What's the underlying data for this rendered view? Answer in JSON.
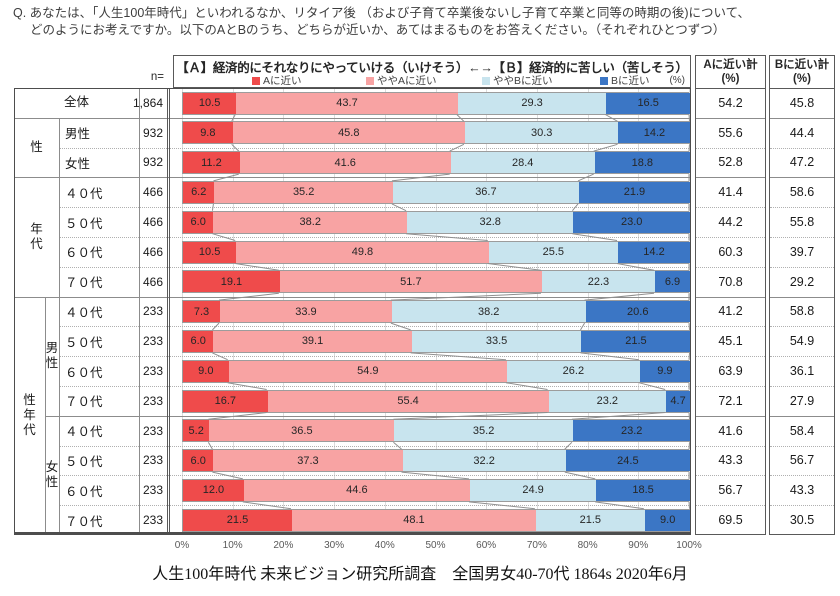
{
  "question": {
    "line1": "Q. あなたは、「人生100年時代」といわれるなか、リタイア後 （および子育て卒業後ないし子育て卒業と同等の時期の後)について、",
    "line2": "どのようにお考えですか。以下のAとBのうち、どちらが近いか、あてはまるものをお答えください。（それぞれひとつずつ）"
  },
  "header": {
    "n_label": "n=",
    "percent_note": "(%)",
    "col_a_title": "Aに近い計",
    "col_a_unit": "(%)",
    "col_b_title": "Bに近い計",
    "col_b_unit": "(%)"
  },
  "chart_data": {
    "type": "bar",
    "stacked": true,
    "orientation": "horizontal",
    "legend_position": "top",
    "title": "【Ａ】経済的にそれなりにやっていける（いけそう）←→【Ｂ】経済的に苦しい（苦しそう）",
    "series_names": [
      "Aに近い",
      "ややAに近い",
      "ややBに近い",
      "Bに近い"
    ],
    "colors": [
      "#ef4b4b",
      "#f8a3a3",
      "#c8e4ee",
      "#3b76c5"
    ],
    "xlim": [
      0,
      100
    ],
    "x_ticks": [
      "0%",
      "10%",
      "20%",
      "30%",
      "40%",
      "50%",
      "60%",
      "70%",
      "80%",
      "90%",
      "100%"
    ],
    "rows": [
      {
        "group": "全体",
        "label": "全体",
        "n": "1,864",
        "values": [
          10.5,
          43.7,
          29.3,
          16.5
        ],
        "a_total": 54.2,
        "b_total": 45.8
      },
      {
        "group": "性",
        "label": "男性",
        "n": "932",
        "values": [
          9.8,
          45.8,
          30.3,
          14.2
        ],
        "a_total": 55.6,
        "b_total": 44.4
      },
      {
        "group": "性",
        "label": "女性",
        "n": "932",
        "values": [
          11.2,
          41.6,
          28.4,
          18.8
        ],
        "a_total": 52.8,
        "b_total": 47.2
      },
      {
        "group": "年代",
        "label": "４０代",
        "n": "466",
        "values": [
          6.2,
          35.2,
          36.7,
          21.9
        ],
        "a_total": 41.4,
        "b_total": 58.6
      },
      {
        "group": "年代",
        "label": "５０代",
        "n": "466",
        "values": [
          6.0,
          38.2,
          32.8,
          23.0
        ],
        "a_total": 44.2,
        "b_total": 55.8
      },
      {
        "group": "年代",
        "label": "６０代",
        "n": "466",
        "values": [
          10.5,
          49.8,
          25.5,
          14.2
        ],
        "a_total": 60.3,
        "b_total": 39.7
      },
      {
        "group": "年代",
        "label": "７０代",
        "n": "466",
        "values": [
          19.1,
          51.7,
          22.3,
          6.9
        ],
        "a_total": 70.8,
        "b_total": 29.2
      },
      {
        "group": "性年代・男性",
        "label": "４０代",
        "n": "233",
        "values": [
          7.3,
          33.9,
          38.2,
          20.6
        ],
        "a_total": 41.2,
        "b_total": 58.8
      },
      {
        "group": "性年代・男性",
        "label": "５０代",
        "n": "233",
        "values": [
          6.0,
          39.1,
          33.5,
          21.5
        ],
        "a_total": 45.1,
        "b_total": 54.9
      },
      {
        "group": "性年代・男性",
        "label": "６０代",
        "n": "233",
        "values": [
          9.0,
          54.9,
          26.2,
          9.9
        ],
        "a_total": 63.9,
        "b_total": 36.1
      },
      {
        "group": "性年代・男性",
        "label": "７０代",
        "n": "233",
        "values": [
          16.7,
          55.4,
          23.2,
          4.7
        ],
        "a_total": 72.1,
        "b_total": 27.9
      },
      {
        "group": "性年代・女性",
        "label": "４０代",
        "n": "233",
        "values": [
          5.2,
          36.5,
          35.2,
          23.2
        ],
        "a_total": 41.6,
        "b_total": 58.4
      },
      {
        "group": "性年代・女性",
        "label": "５０代",
        "n": "233",
        "values": [
          6.0,
          37.3,
          32.2,
          24.5
        ],
        "a_total": 43.3,
        "b_total": 56.7
      },
      {
        "group": "性年代・女性",
        "label": "６０代",
        "n": "233",
        "values": [
          12.0,
          44.6,
          24.9,
          18.5
        ],
        "a_total": 56.7,
        "b_total": 43.3
      },
      {
        "group": "性年代・女性",
        "label": "７０代",
        "n": "233",
        "values": [
          21.5,
          48.1,
          21.5,
          9.0
        ],
        "a_total": 69.5,
        "b_total": 30.5
      }
    ]
  },
  "table": {
    "group_cells": [
      {
        "label": "全体",
        "col": "c1c2c3",
        "row_start": 0,
        "row_end": 1,
        "vertical": false
      },
      {
        "label": "性",
        "col": "c1c2",
        "row_start": 1,
        "row_end": 3,
        "vertical": false
      },
      {
        "label": "年代",
        "col": "c1c2",
        "row_start": 3,
        "row_end": 7,
        "vertical": true
      },
      {
        "label": "性年代",
        "col": "c1",
        "row_start": 7,
        "row_end": 15,
        "vertical": true
      },
      {
        "label": "男性",
        "col": "c2",
        "row_start": 7,
        "row_end": 11,
        "vertical": true
      },
      {
        "label": "女性",
        "col": "c2",
        "row_start": 11,
        "row_end": 15,
        "vertical": true
      }
    ],
    "separators": [
      {
        "style": "solid",
        "from": "table"
      },
      {
        "style": "dotted",
        "from": "label"
      },
      {
        "style": "solid",
        "from": "table"
      },
      {
        "style": "dotted",
        "from": "label"
      },
      {
        "style": "dotted",
        "from": "label"
      },
      {
        "style": "dotted",
        "from": "label"
      },
      {
        "style": "solid",
        "from": "table"
      },
      {
        "style": "dotted",
        "from": "label"
      },
      {
        "style": "dotted",
        "from": "label"
      },
      {
        "style": "dotted",
        "from": "label"
      },
      {
        "style": "solid",
        "from": "subgroup"
      },
      {
        "style": "dotted",
        "from": "label"
      },
      {
        "style": "dotted",
        "from": "label"
      },
      {
        "style": "dotted",
        "from": "label"
      }
    ]
  },
  "footer": {
    "caption": "人生100年時代 未来ビジョン研究所調査　全国男女40-70代 1864s  2020年6月"
  }
}
